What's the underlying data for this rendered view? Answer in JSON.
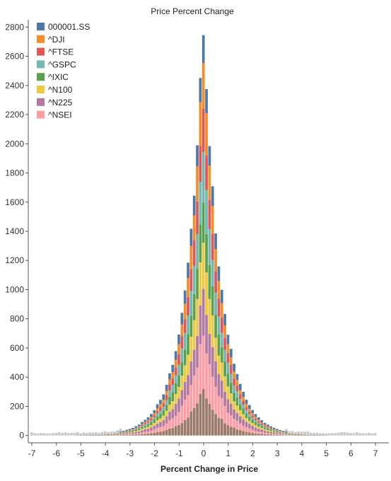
{
  "chart_data": {
    "type": "bar",
    "stacked": true,
    "title": "Price Percent Change",
    "xlabel": "Percent Change in Price",
    "ylabel": "",
    "xlim": [
      -7.2,
      7.2
    ],
    "ylim": [
      -50,
      2850
    ],
    "bin_width": 0.125,
    "x_ticks": [
      -7,
      -6,
      -5,
      -4,
      -3,
      -2,
      -1,
      0,
      1,
      2,
      3,
      4,
      5,
      6,
      7
    ],
    "y_ticks": [
      0,
      200,
      400,
      600,
      800,
      1000,
      1200,
      1400,
      1600,
      1800,
      2000,
      2200,
      2400,
      2600,
      2800
    ],
    "legend_position": "top-left",
    "grid": false,
    "total_peak": 2730,
    "bottom_series": {
      "color": "#9c7a6a",
      "peak": 320,
      "width": 0.7
    },
    "series": [
      {
        "name": "000001.SS",
        "color": "#4e79a7",
        "peak": 190,
        "width": 0.95
      },
      {
        "name": "^DJI",
        "color": "#f28e2b",
        "peak": 340,
        "width": 0.62
      },
      {
        "name": "^FTSE",
        "color": "#e15759",
        "peak": 300,
        "width": 0.68
      },
      {
        "name": "^GSPC",
        "color": "#76b7b2",
        "peak": 360,
        "width": 0.62
      },
      {
        "name": "^IXIC",
        "color": "#59a14f",
        "peak": 300,
        "width": 0.78
      },
      {
        "name": "^N100",
        "color": "#edc948",
        "peak": 340,
        "width": 0.7
      },
      {
        "name": "^N225",
        "color": "#b07aa1",
        "peak": 300,
        "width": 0.82
      },
      {
        "name": "^NSEI",
        "color": "#ff9da7",
        "peak": 380,
        "width": 0.7
      }
    ],
    "tail_color": "#c9c9c9"
  }
}
